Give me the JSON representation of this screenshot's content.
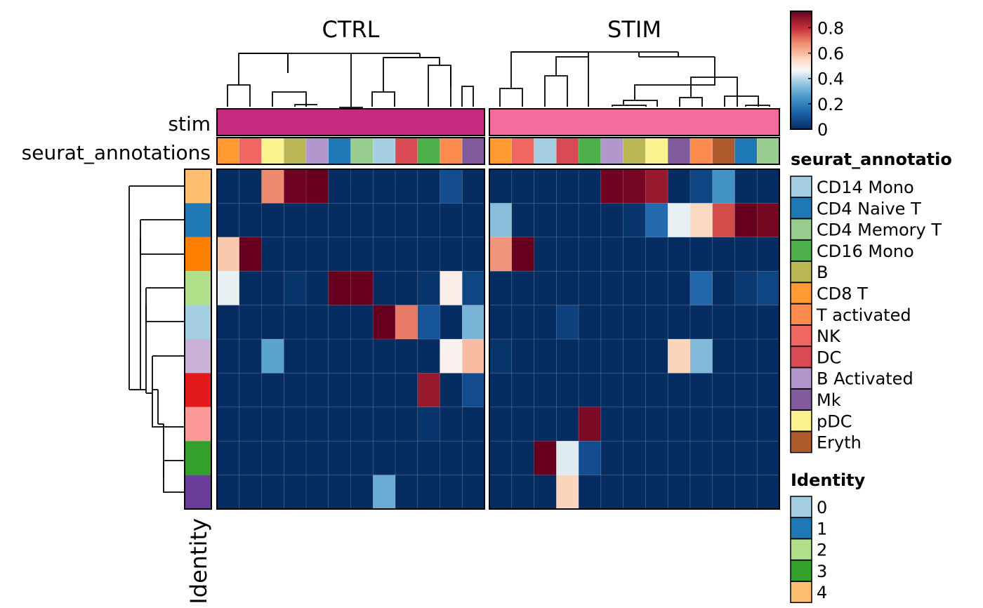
{
  "chart_data": {
    "type": "heatmap",
    "panels": [
      {
        "title": "CTRL",
        "columns": [
          "CD8 T",
          "NK",
          "pDC",
          "B",
          "B Activated",
          "CD4 Naive T",
          "CD4 Memory T",
          "CD14 Mono",
          "DC",
          "CD16 Mono",
          "T activated",
          "Mk"
        ],
        "values": [
          [
            0,
            0,
            0.68,
            0.92,
            0.93,
            0,
            0,
            0,
            0,
            0,
            0.08,
            0
          ],
          [
            0,
            0,
            0,
            0,
            0,
            0,
            0,
            0,
            0,
            0,
            0,
            0
          ],
          [
            0.58,
            0.93,
            0,
            0,
            0,
            0,
            0,
            0,
            0,
            0,
            0,
            0
          ],
          [
            0.45,
            0,
            0,
            0.02,
            0,
            0.93,
            0.93,
            0,
            0,
            0.02,
            0.49,
            0.06
          ],
          [
            0,
            0,
            0,
            0,
            0,
            0,
            0,
            0.93,
            0.7,
            0.1,
            0,
            0.32
          ],
          [
            0,
            0,
            0.28,
            0,
            0,
            0,
            0,
            0,
            0,
            0,
            0.48,
            0.6
          ],
          [
            0,
            0,
            0,
            0,
            0,
            0,
            0,
            0,
            0,
            0.86,
            0,
            0.08
          ],
          [
            0,
            0,
            0,
            0,
            0,
            0,
            0,
            0,
            0,
            0.02,
            0,
            0
          ],
          [
            0,
            0,
            0,
            0,
            0,
            0,
            0,
            0,
            0,
            0,
            0,
            0
          ],
          [
            0,
            0,
            0,
            0,
            0,
            0,
            0,
            0.3,
            0,
            0,
            0,
            0
          ]
        ]
      },
      {
        "title": "STIM",
        "columns": [
          "CD8 T",
          "NK",
          "CD14 Mono",
          "DC",
          "CD16 Mono",
          "B Activated",
          "B",
          "pDC",
          "Mk",
          "T activated",
          "Eryth",
          "CD4 Naive T",
          "CD4 Memory T"
        ],
        "values": [
          [
            0,
            0,
            0,
            0,
            0,
            0.92,
            0.91,
            0.86,
            0,
            0.06,
            0.24,
            0,
            0
          ],
          [
            0.34,
            0,
            0,
            0,
            0,
            0,
            0.02,
            0.15,
            0.45,
            0.55,
            0.76,
            0.93,
            0.91
          ],
          [
            0.66,
            0.93,
            0,
            0,
            0,
            0,
            0,
            0,
            0,
            0,
            0,
            0,
            0
          ],
          [
            0,
            0,
            0,
            0,
            0,
            0,
            0,
            0,
            0,
            0.14,
            0,
            0.03,
            0.06
          ],
          [
            0,
            0,
            0,
            0.05,
            0,
            0,
            0,
            0,
            0,
            0,
            0,
            0,
            0
          ],
          [
            0.02,
            0,
            0,
            0,
            0,
            0,
            0,
            0,
            0.56,
            0.33,
            0,
            0,
            0
          ],
          [
            0,
            0,
            0,
            0,
            0,
            0,
            0,
            0,
            0,
            0,
            0,
            0,
            0
          ],
          [
            0,
            0,
            0,
            0,
            0.9,
            0,
            0,
            0,
            0,
            0,
            0,
            0,
            0
          ],
          [
            0,
            0,
            0.93,
            0.44,
            0.08,
            0,
            0,
            0,
            0,
            0,
            0,
            0,
            0
          ],
          [
            0,
            0,
            0,
            0.56,
            0,
            0,
            0,
            0,
            0,
            0,
            0,
            0,
            0
          ]
        ]
      }
    ],
    "rows": [
      "4",
      "1",
      "5",
      "2",
      "0",
      "8",
      "6",
      "7",
      "3",
      "9"
    ],
    "row_annotation_title": "Identity",
    "top_annotations": [
      {
        "title": "stim",
        "values": {
          "CTRL": "#c32a80",
          "STIM": "#f46b9f"
        }
      },
      {
        "title": "seurat_annotations"
      }
    ],
    "color_scale": {
      "type": "continuous",
      "range": [
        0,
        0.93
      ],
      "ticks": [
        "0",
        "0.2",
        "0.4",
        "0.6",
        "0.8"
      ],
      "tick_values": [
        0,
        0.2,
        0.4,
        0.6,
        0.8
      ],
      "stops": [
        {
          "v": 0,
          "c": "#062d61"
        },
        {
          "v": 0.12,
          "c": "#1a5da6"
        },
        {
          "v": 0.26,
          "c": "#4a9bca"
        },
        {
          "v": 0.38,
          "c": "#a9cfe4"
        },
        {
          "v": 0.465,
          "c": "#f7f7f7"
        },
        {
          "v": 0.56,
          "c": "#fbd4bc"
        },
        {
          "v": 0.68,
          "c": "#ee8b6e"
        },
        {
          "v": 0.79,
          "c": "#c8343c"
        },
        {
          "v": 0.93,
          "c": "#67001f"
        }
      ]
    },
    "legend_annotations": {
      "title": "seurat_annotations",
      "title_shown": "seurat_annotatio",
      "items": [
        {
          "label": "CD14 Mono",
          "color": "#a6cee3"
        },
        {
          "label": "CD4 Naive T",
          "color": "#1f78b4"
        },
        {
          "label": "CD4 Memory T",
          "color": "#98cd8f"
        },
        {
          "label": "CD16 Mono",
          "color": "#4daf4a"
        },
        {
          "label": "B",
          "color": "#b9b654"
        },
        {
          "label": "CD8 T",
          "color": "#fe9a31"
        },
        {
          "label": "T activated",
          "color": "#fe8c4f"
        },
        {
          "label": "NK",
          "color": "#f06663"
        },
        {
          "label": "DC",
          "color": "#d84b55"
        },
        {
          "label": "B Activated",
          "color": "#b197cb"
        },
        {
          "label": "Mk",
          "color": "#805a9b"
        },
        {
          "label": "pDC",
          "color": "#f9f28f"
        },
        {
          "label": "Eryth",
          "color": "#ae5a2c"
        }
      ]
    },
    "legend_identity": {
      "title": "Identity",
      "items": [
        {
          "label": "0",
          "color": "#a6cee3"
        },
        {
          "label": "1",
          "color": "#1f78b4"
        },
        {
          "label": "2",
          "color": "#b2df8a"
        },
        {
          "label": "3",
          "color": "#33a02c"
        },
        {
          "label": "4",
          "color": "#fdbf6f"
        }
      ]
    },
    "identity_colors": {
      "0": "#a6cee3",
      "1": "#1f78b4",
      "2": "#b2df8a",
      "3": "#33a02c",
      "4": "#fdbf6f",
      "5": "#ff7f00",
      "6": "#e31a1c",
      "7": "#fb9a99",
      "8": "#cab2d6",
      "9": "#6a3d9a"
    }
  }
}
